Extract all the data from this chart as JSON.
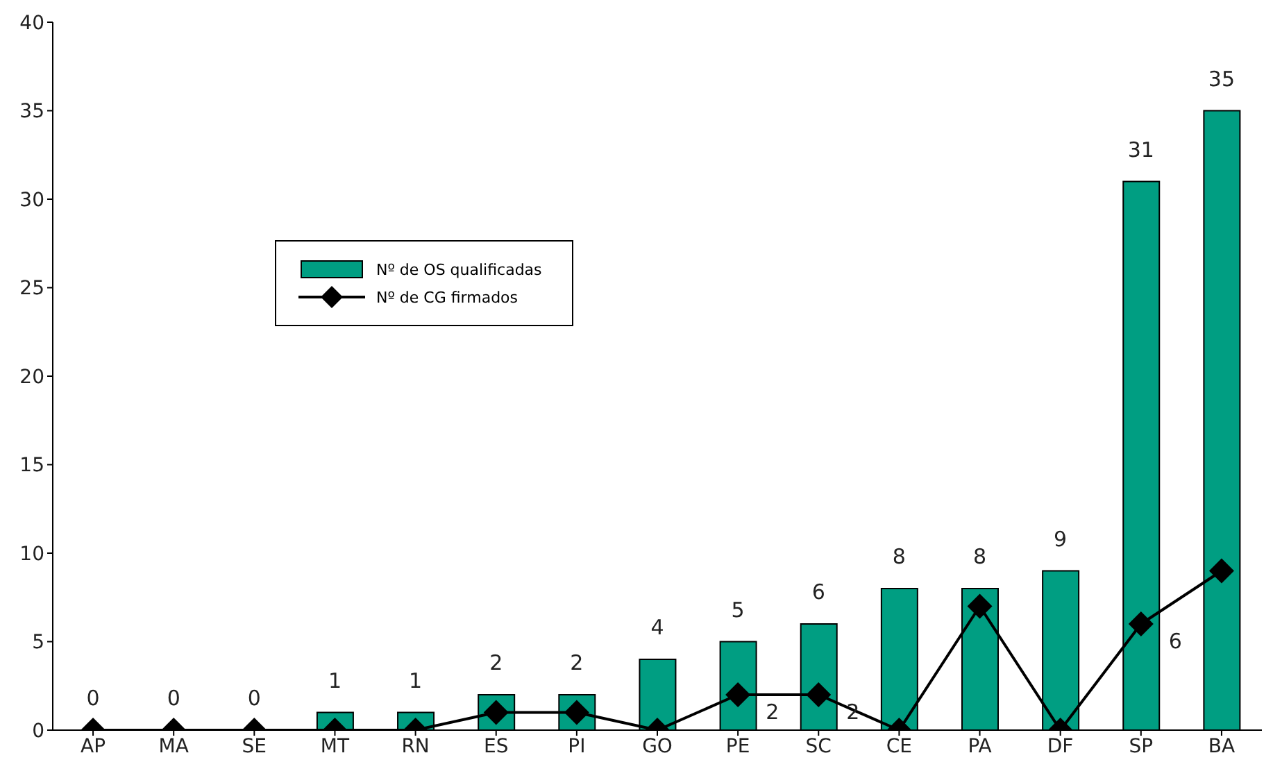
{
  "chart_data": {
    "type": "bar",
    "categories": [
      "AP",
      "MA",
      "SE",
      "MT",
      "RN",
      "ES",
      "PI",
      "GO",
      "PE",
      "SC",
      "CE",
      "PA",
      "DF",
      "SP",
      "BA"
    ],
    "series": [
      {
        "name": "Nº de OS qualificadas",
        "color": "#009e82",
        "values": [
          0,
          0,
          0,
          1,
          1,
          2,
          2,
          4,
          5,
          6,
          8,
          8,
          9,
          31,
          35
        ],
        "data_labels": true
      },
      {
        "name": "Nº de CG firmados",
        "type": "line",
        "color": "#000000",
        "marker": "diamond",
        "line_style": "solid",
        "values": [
          0,
          0,
          0,
          0,
          0,
          1,
          1,
          0,
          2,
          2,
          0,
          7,
          0,
          6,
          9
        ],
        "value_labels": [
          null,
          null,
          null,
          null,
          null,
          null,
          null,
          null,
          "2",
          "2",
          null,
          null,
          null,
          "6",
          null
        ]
      }
    ],
    "ylim": [
      0,
      40
    ],
    "yticks": [
      0,
      5,
      10,
      15,
      20,
      25,
      30,
      35,
      40
    ],
    "grid": false,
    "legend": "top left"
  }
}
